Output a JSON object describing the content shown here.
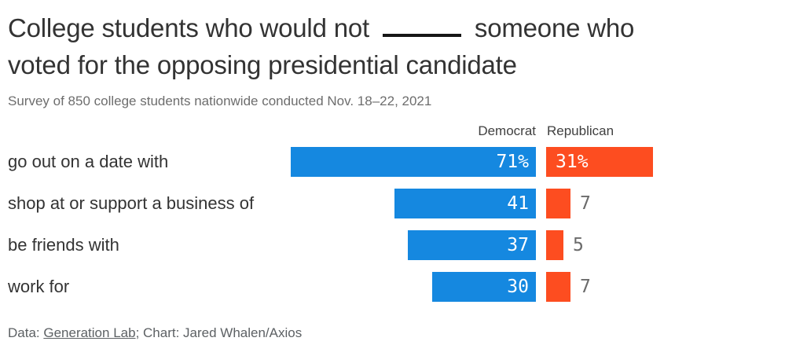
{
  "title": {
    "line1_before_blank": "College students who would not",
    "line1_after_blank": "someone who",
    "line2": "voted for the opposing presidential candidate"
  },
  "subtitle": "Survey of 850 college students nationwide conducted Nov. 18–22, 2021",
  "legend": {
    "democrat": "Democrat",
    "republican": "Republican"
  },
  "footer": {
    "prefix": "Data: ",
    "source_link": "Generation Lab",
    "suffix": "; Chart: Jared Whalen/Axios"
  },
  "colors": {
    "democrat": "#1588e0",
    "republican": "#fd4d20",
    "blank_line": "#161616",
    "outside_value": "#6b6b6b"
  },
  "chart_data": {
    "type": "bar",
    "orientation": "horizontal",
    "title": "College students who would not ____ someone who voted for the opposing presidential candidate",
    "subtitle": "Survey of 850 college students nationwide conducted Nov. 18–22, 2021",
    "categories": [
      "go out on a date with",
      "shop at or support a business of",
      "be friends with",
      "work for"
    ],
    "series": [
      {
        "name": "Democrat",
        "color": "#1588e0",
        "values": [
          71,
          41,
          37,
          30
        ],
        "display_labels": [
          "71%",
          "41",
          "37",
          "30"
        ]
      },
      {
        "name": "Republican",
        "color": "#fd4d20",
        "values": [
          31,
          7,
          5,
          7
        ],
        "display_labels": [
          "31%",
          "7",
          "5",
          "7"
        ]
      }
    ],
    "xlim": [
      0,
      71
    ],
    "legend_position": "top",
    "grid": false,
    "source": "Data: Generation Lab; Chart: Jared Whalen/Axios"
  }
}
